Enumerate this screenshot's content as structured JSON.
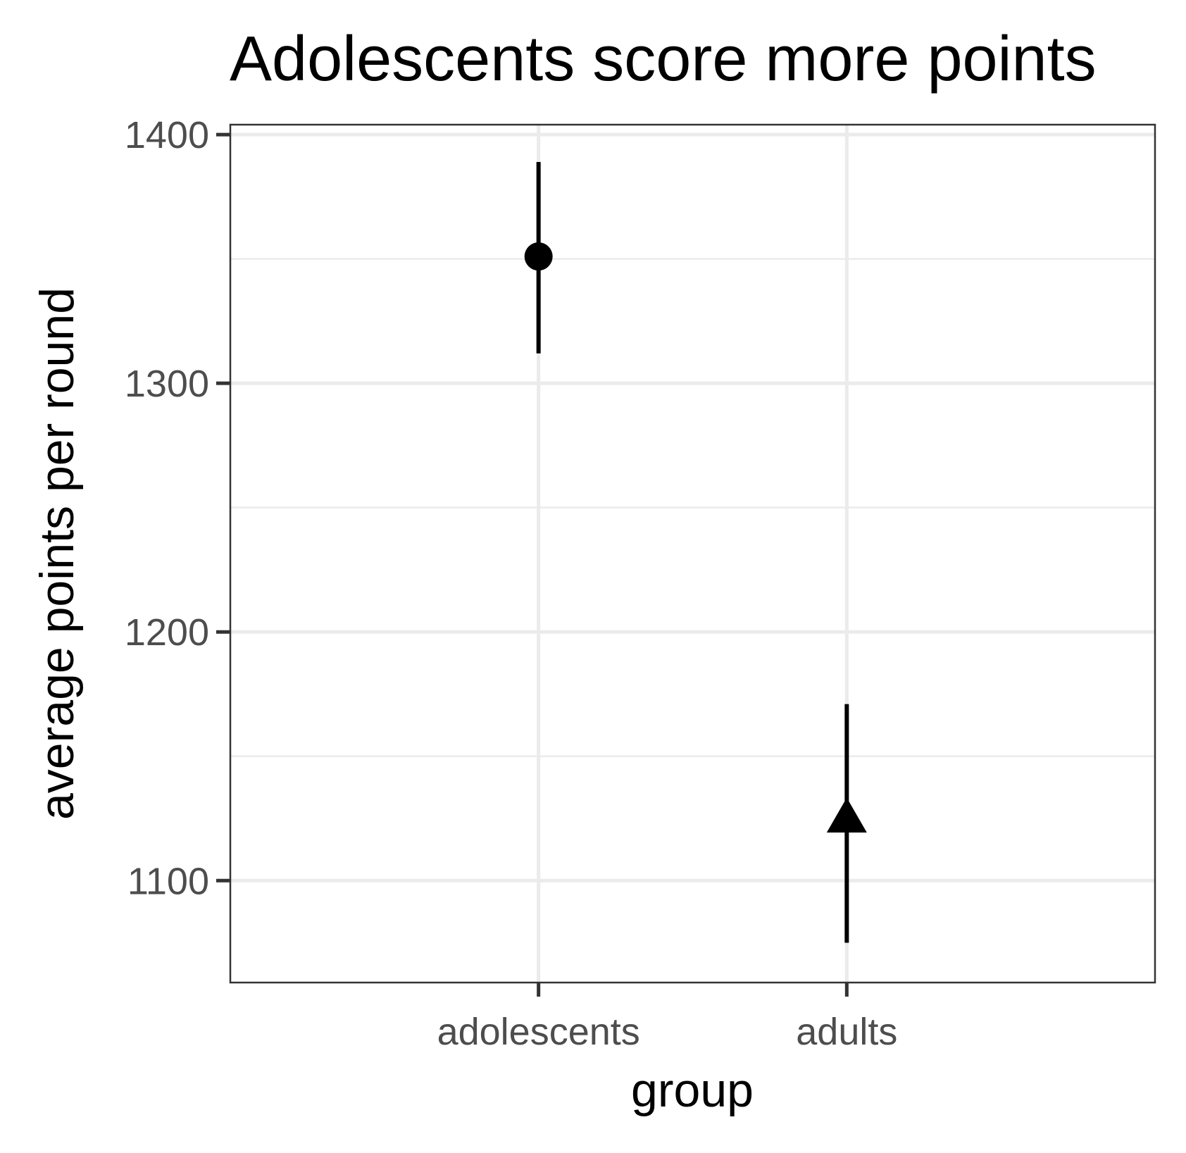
{
  "chart_data": {
    "type": "scatter",
    "title": "Adolescents score more points",
    "xlabel": "group",
    "ylabel": "average points per round",
    "categories": [
      "adolescents",
      "adults"
    ],
    "series": [
      {
        "values": [
          1351,
          null
        ],
        "ci_low": [
          1312,
          null
        ],
        "ci_high": [
          1389,
          null
        ],
        "marker": "circle"
      },
      {
        "values": [
          null,
          1124
        ],
        "ci_low": [
          null,
          1075
        ],
        "ci_high": [
          null,
          1171
        ],
        "marker": "triangle"
      }
    ],
    "ylim": [
      1059,
      1404
    ],
    "yticks": [
      1100,
      1200,
      1300,
      1400
    ],
    "grid": true,
    "legend": "none",
    "colors": {
      "marks": "#000000",
      "grid": "#ebebeb",
      "panel_border": "#333333",
      "tick_label": "#4d4d4d"
    }
  }
}
